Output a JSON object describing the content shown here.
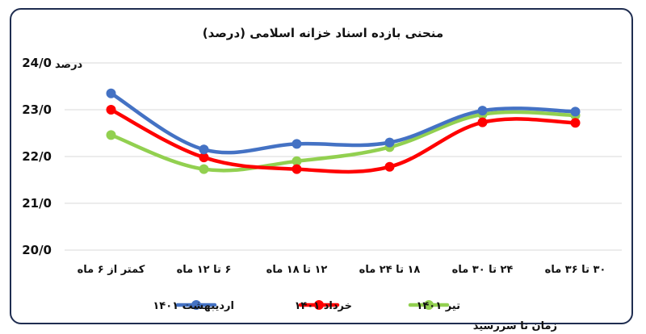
{
  "chart_data": {
    "type": "line",
    "title": "منحنی بازده اسناد خزانه اسلامی (درصد)",
    "ylabel": "درصد",
    "xlabel": "زمان تا سررسید",
    "ylim": [
      20,
      24
    ],
    "yticks": [
      "20/0",
      "21/0",
      "22/0",
      "23/0",
      "24/0"
    ],
    "categories": [
      "کمتر از ۶ ماه",
      "۶ تا ۱۲ ماه",
      "۱۲ تا ۱۸ ماه",
      "۱۸ تا ۲۴ ماه",
      "۲۴ تا ۳۰ ماه",
      "۳۰ تا ۳۶ ماه"
    ],
    "grid": true,
    "legend_position": "bottom",
    "series": [
      {
        "name": "اردیبهشت ۱۴۰۱",
        "color": "#4472c4",
        "values": [
          23.35,
          22.15,
          22.27,
          22.3,
          22.98,
          22.96
        ]
      },
      {
        "name": "خرداد ۱۴۰۱",
        "color": "#ff0000",
        "values": [
          23.0,
          21.98,
          21.73,
          21.78,
          22.73,
          22.72
        ]
      },
      {
        "name": "تیر ۱۴۰۱",
        "color": "#92d050",
        "values": [
          22.46,
          21.73,
          21.9,
          22.2,
          22.9,
          22.88
        ]
      }
    ]
  }
}
